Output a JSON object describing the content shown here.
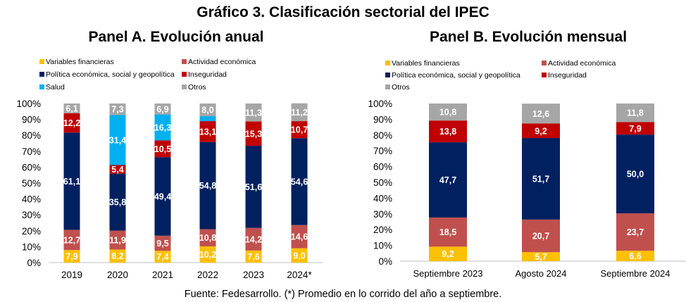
{
  "title": "Gráfico 3. Clasificación sectorial del IPEC",
  "source": "Fuente: Fedesarrollo. (*) Promedio en lo corrido del año a septiembre.",
  "colors": {
    "variables_financieras": "#FFC000",
    "actividad_economica": "#C0504D",
    "politica": "#002060",
    "inseguridad": "#C00000",
    "salud": "#00B0F0",
    "otros": "#A6A6A6"
  },
  "chart_data": [
    {
      "type": "bar",
      "stacked": true,
      "title": "Panel A. Evolución anual",
      "categories": [
        "2019",
        "2020",
        "2021",
        "2022",
        "2023",
        "2024*"
      ],
      "ylim": [
        0,
        100
      ],
      "yticks": [
        "0%",
        "10%",
        "20%",
        "30%",
        "40%",
        "50%",
        "60%",
        "70%",
        "80%",
        "90%",
        "100%"
      ],
      "legend": [
        "Variables financieras",
        "Actividad económica",
        "Política económica, social y geopolítica",
        "Inseguridad",
        "Salud",
        "Otros"
      ],
      "series": [
        {
          "name": "Variables financieras",
          "key": "variables_financieras",
          "values": [
            7.9,
            8.2,
            7.4,
            10.2,
            7.6,
            9.0
          ]
        },
        {
          "name": "Actividad económica",
          "key": "actividad_economica",
          "values": [
            12.7,
            11.9,
            9.5,
            10.8,
            14.2,
            14.6
          ]
        },
        {
          "name": "Política económica, social y geopolítica",
          "key": "politica",
          "values": [
            61.1,
            35.8,
            49.4,
            54.8,
            51.6,
            54.6
          ]
        },
        {
          "name": "Inseguridad",
          "key": "inseguridad",
          "values": [
            12.2,
            5.4,
            10.5,
            13.1,
            15.3,
            10.7
          ]
        },
        {
          "name": "Salud",
          "key": "salud",
          "values": [
            0,
            31.4,
            16.3,
            3.1,
            0,
            0
          ]
        },
        {
          "name": "Otros",
          "key": "otros",
          "values": [
            6.1,
            7.3,
            6.9,
            8.0,
            11.3,
            11.2
          ]
        }
      ],
      "labels": [
        [
          "7,9",
          "8,2",
          "7,4",
          "10,2",
          "7,6",
          "9,0"
        ],
        [
          "12,7",
          "11,9",
          "9,5",
          "10,8",
          "14,2",
          "14,6"
        ],
        [
          "61,1",
          "35,8",
          "49,4",
          "54,8",
          "51,6",
          "54,6"
        ],
        [
          "12,2",
          "5,4",
          "10,5",
          "13,1",
          "15,3",
          "10,7"
        ],
        [
          "",
          "31,4",
          "16,3",
          "",
          "",
          ""
        ],
        [
          "6,1",
          "7,3",
          "6,9",
          "8,0",
          "11,3",
          "11,2"
        ]
      ]
    },
    {
      "type": "bar",
      "stacked": true,
      "title": "Panel B. Evolución mensual",
      "categories": [
        "Septiembre 2023",
        "Agosto 2024",
        "Septiembre 2024"
      ],
      "ylim": [
        0,
        100
      ],
      "yticks": [
        "0%",
        "10%",
        "20%",
        "30%",
        "40%",
        "50%",
        "60%",
        "70%",
        "80%",
        "90%",
        "100%"
      ],
      "legend": [
        "Variables financieras",
        "Actividad económica",
        "Política económica, social y geopolítica",
        "Inseguridad",
        "Otros"
      ],
      "series": [
        {
          "name": "Variables financieras",
          "key": "variables_financieras",
          "values": [
            9.2,
            5.7,
            6.6
          ]
        },
        {
          "name": "Actividad económica",
          "key": "actividad_economica",
          "values": [
            18.5,
            20.7,
            23.7
          ]
        },
        {
          "name": "Política económica, social y geopolítica",
          "key": "politica",
          "values": [
            47.7,
            51.7,
            50.0
          ]
        },
        {
          "name": "Inseguridad",
          "key": "inseguridad",
          "values": [
            13.8,
            9.2,
            7.9
          ]
        },
        {
          "name": "Otros",
          "key": "otros",
          "values": [
            10.8,
            12.6,
            11.8
          ]
        }
      ],
      "labels": [
        [
          "9,2",
          "5,7",
          "6,6"
        ],
        [
          "18,5",
          "20,7",
          "23,7"
        ],
        [
          "47,7",
          "51,7",
          "50,0"
        ],
        [
          "13,8",
          "9,2",
          "7,9"
        ],
        [
          "10,8",
          "12,6",
          "11,8"
        ]
      ]
    }
  ]
}
